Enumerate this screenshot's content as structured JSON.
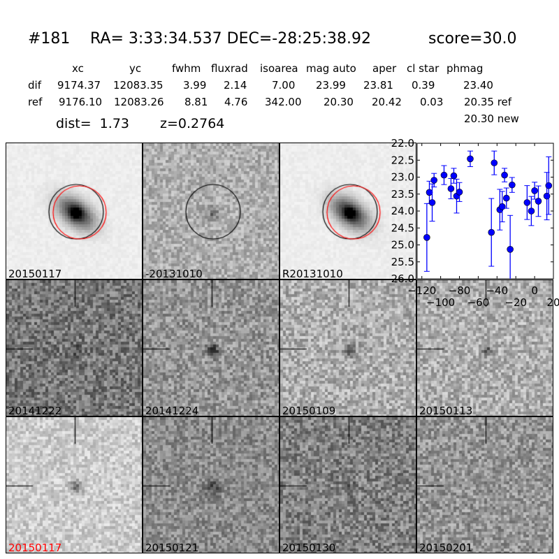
{
  "title": {
    "id": "#181",
    "coords": "RA= 3:33:34.537 DEC=-28:25:38.92",
    "score": "score=30.0"
  },
  "table": {
    "headers": [
      "xc",
      "yc",
      "fwhm",
      "fluxrad",
      "isoarea",
      "mag auto",
      "aper",
      "cl star",
      "phmag"
    ],
    "dif": {
      "label": "dif",
      "values": [
        "9174.37",
        "12083.35",
        "3.99",
        "2.14",
        "7.00",
        "23.99",
        "23.81",
        "0.39",
        "23.40"
      ]
    },
    "ref": {
      "label": "ref",
      "values": [
        "9176.10",
        "12083.26",
        "8.81",
        "4.76",
        "342.00",
        "20.30",
        "20.42",
        "0.03",
        "20.35 ref"
      ]
    },
    "new": "20.30 new",
    "dist": "dist=  1.73",
    "z": "z=0.2764"
  },
  "stamps": [
    {
      "label": "20150117",
      "color": "#000000"
    },
    {
      "label": "-20131010",
      "color": "#000000"
    },
    {
      "label": "R20131010",
      "color": "#000000"
    },
    {
      "label": "20141222",
      "color": "#000000"
    },
    {
      "label": "20141224",
      "color": "#000000"
    },
    {
      "label": "20150109",
      "color": "#000000"
    },
    {
      "label": "20150113",
      "color": "#000000"
    },
    {
      "label": "20150117",
      "color": "#ff0000"
    },
    {
      "label": "20150121",
      "color": "#000000"
    },
    {
      "label": "20150130",
      "color": "#000000"
    },
    {
      "label": "20150201",
      "color": "#000000"
    }
  ],
  "chart_data": {
    "type": "scatter",
    "error_bars": true,
    "marker_color": "#0000ff",
    "xlim": [
      -125,
      20
    ],
    "ylim": [
      26.0,
      22.0
    ],
    "y_inverted": true,
    "xticks": [
      "−120",
      "−100",
      "−80",
      "−60",
      "−40",
      "−20",
      "0",
      "20"
    ],
    "xtick_values": [
      -120,
      -100,
      -80,
      -60,
      -40,
      -20,
      0,
      20
    ],
    "yticks": [
      "22.0",
      "22.5",
      "23.0",
      "23.5",
      "24.0",
      "24.5",
      "25.0",
      "25.5",
      "26.0"
    ],
    "ytick_values": [
      22.0,
      22.5,
      23.0,
      23.5,
      24.0,
      24.5,
      25.0,
      25.5,
      26.0
    ],
    "x": [
      -114.7,
      -112,
      -109,
      -107,
      -96.4,
      -89,
      -86,
      -83,
      -80,
      -68.5,
      -46,
      -43,
      -37,
      -34.5,
      -32,
      -30,
      -26,
      -24,
      -8,
      -3.5,
      0,
      4,
      13,
      15
    ],
    "y": [
      24.78,
      23.45,
      23.75,
      23.09,
      22.94,
      23.34,
      22.96,
      23.56,
      23.44,
      22.46,
      24.63,
      22.58,
      23.96,
      23.87,
      22.94,
      23.62,
      25.13,
      23.23,
      23.75,
      24.0,
      23.4,
      23.71,
      23.56,
      23.25
    ],
    "yerr": [
      1.0,
      0.33,
      0.55,
      0.2,
      0.28,
      0.3,
      0.22,
      0.5,
      0.28,
      0.23,
      1.0,
      0.35,
      0.6,
      0.45,
      0.2,
      0.3,
      1.0,
      0.22,
      0.5,
      0.43,
      0.25,
      0.45,
      0.7,
      0.85
    ]
  }
}
